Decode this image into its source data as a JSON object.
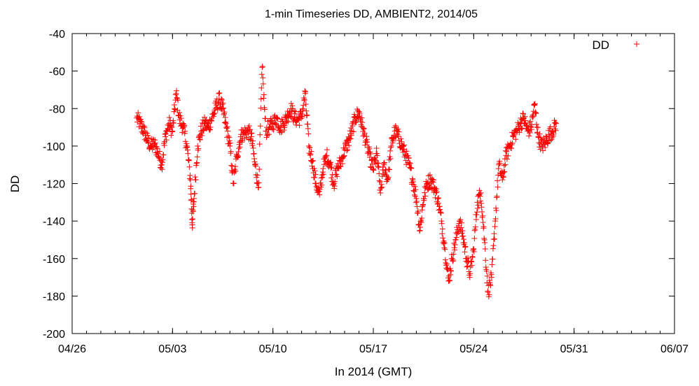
{
  "chart_data": {
    "type": "scatter",
    "title": "1-min Timeseries DD, AMBIENT2, 2014/05",
    "xlabel": "In 2014 (GMT)",
    "ylabel": "DD",
    "x_unit": "date (2014, GMT)",
    "xlim": [
      "2014-04-26",
      "2014-06-07"
    ],
    "ylim": [
      -200,
      -40
    ],
    "x_ticks": [
      "04/26",
      "05/03",
      "05/10",
      "05/17",
      "05/24",
      "05/31",
      "06/07"
    ],
    "y_ticks": [
      "-200",
      "-180",
      "-160",
      "-140",
      "-120",
      "-100",
      "-80",
      "-60",
      "-40"
    ],
    "grid": false,
    "legend_position": "top-right",
    "series": [
      {
        "name": "DD",
        "color": "#ff0000",
        "marker": "+",
        "points": [
          [
            "2014-04-30T12:00",
            -85
          ],
          [
            "2014-04-30T18:00",
            -88
          ],
          [
            "2014-05-01T00:00",
            -92
          ],
          [
            "2014-05-01T06:00",
            -97
          ],
          [
            "2014-05-01T12:00",
            -100
          ],
          [
            "2014-05-01T18:00",
            -99
          ],
          [
            "2014-05-02T00:00",
            -104
          ],
          [
            "2014-05-02T06:00",
            -110
          ],
          [
            "2014-05-02T12:00",
            -95
          ],
          [
            "2014-05-02T18:00",
            -88
          ],
          [
            "2014-05-03T00:00",
            -92
          ],
          [
            "2014-05-03T06:00",
            -72
          ],
          [
            "2014-05-03T12:00",
            -86
          ],
          [
            "2014-05-03T18:00",
            -90
          ],
          [
            "2014-05-04T00:00",
            -100
          ],
          [
            "2014-05-04T06:00",
            -118
          ],
          [
            "2014-05-04T09:00",
            -142
          ],
          [
            "2014-05-04T12:00",
            -128
          ],
          [
            "2014-05-04T18:00",
            -100
          ],
          [
            "2014-05-05T00:00",
            -92
          ],
          [
            "2014-05-05T06:00",
            -88
          ],
          [
            "2014-05-05T12:00",
            -90
          ],
          [
            "2014-05-05T18:00",
            -85
          ],
          [
            "2014-05-06T00:00",
            -80
          ],
          [
            "2014-05-06T06:00",
            -75
          ],
          [
            "2014-05-06T12:00",
            -80
          ],
          [
            "2014-05-06T18:00",
            -90
          ],
          [
            "2014-05-07T00:00",
            -100
          ],
          [
            "2014-05-07T06:00",
            -120
          ],
          [
            "2014-05-07T12:00",
            -105
          ],
          [
            "2014-05-07T18:00",
            -95
          ],
          [
            "2014-05-08T00:00",
            -93
          ],
          [
            "2014-05-08T06:00",
            -92
          ],
          [
            "2014-05-08T12:00",
            -95
          ],
          [
            "2014-05-08T18:00",
            -110
          ],
          [
            "2014-05-09T00:00",
            -122
          ],
          [
            "2014-05-09T06:00",
            -58
          ],
          [
            "2014-05-09T12:00",
            -92
          ],
          [
            "2014-05-09T18:00",
            -90
          ],
          [
            "2014-05-10T00:00",
            -88
          ],
          [
            "2014-05-10T06:00",
            -85
          ],
          [
            "2014-05-10T12:00",
            -90
          ],
          [
            "2014-05-10T18:00",
            -88
          ],
          [
            "2014-05-11T00:00",
            -84
          ],
          [
            "2014-05-11T06:00",
            -80
          ],
          [
            "2014-05-11T12:00",
            -85
          ],
          [
            "2014-05-11T18:00",
            -86
          ],
          [
            "2014-05-12T00:00",
            -84
          ],
          [
            "2014-05-12T06:00",
            -72
          ],
          [
            "2014-05-12T12:00",
            -100
          ],
          [
            "2014-05-12T18:00",
            -108
          ],
          [
            "2014-05-13T00:00",
            -120
          ],
          [
            "2014-05-13T06:00",
            -126
          ],
          [
            "2014-05-13T12:00",
            -112
          ],
          [
            "2014-05-13T18:00",
            -105
          ],
          [
            "2014-05-14T00:00",
            -110
          ],
          [
            "2014-05-14T06:00",
            -120
          ],
          [
            "2014-05-14T12:00",
            -112
          ],
          [
            "2014-05-14T18:00",
            -108
          ],
          [
            "2014-05-15T00:00",
            -102
          ],
          [
            "2014-05-15T06:00",
            -98
          ],
          [
            "2014-05-15T12:00",
            -92
          ],
          [
            "2014-05-15T18:00",
            -85
          ],
          [
            "2014-05-16T00:00",
            -82
          ],
          [
            "2014-05-16T06:00",
            -90
          ],
          [
            "2014-05-16T12:00",
            -98
          ],
          [
            "2014-05-16T18:00",
            -106
          ],
          [
            "2014-05-17T00:00",
            -112
          ],
          [
            "2014-05-17T06:00",
            -104
          ],
          [
            "2014-05-17T12:00",
            -125
          ],
          [
            "2014-05-17T18:00",
            -110
          ],
          [
            "2014-05-18T00:00",
            -118
          ],
          [
            "2014-05-18T06:00",
            -100
          ],
          [
            "2014-05-18T12:00",
            -92
          ],
          [
            "2014-05-18T18:00",
            -95
          ],
          [
            "2014-05-19T00:00",
            -100
          ],
          [
            "2014-05-19T06:00",
            -105
          ],
          [
            "2014-05-19T12:00",
            -110
          ],
          [
            "2014-05-19T18:00",
            -118
          ],
          [
            "2014-05-20T00:00",
            -128
          ],
          [
            "2014-05-20T06:00",
            -145
          ],
          [
            "2014-05-20T12:00",
            -128
          ],
          [
            "2014-05-20T18:00",
            -120
          ],
          [
            "2014-05-21T00:00",
            -118
          ],
          [
            "2014-05-21T06:00",
            -122
          ],
          [
            "2014-05-21T12:00",
            -128
          ],
          [
            "2014-05-21T18:00",
            -140
          ],
          [
            "2014-05-22T00:00",
            -155
          ],
          [
            "2014-05-22T06:00",
            -172
          ],
          [
            "2014-05-22T12:00",
            -160
          ],
          [
            "2014-05-22T18:00",
            -150
          ],
          [
            "2014-05-23T00:00",
            -140
          ],
          [
            "2014-05-23T06:00",
            -148
          ],
          [
            "2014-05-23T12:00",
            -160
          ],
          [
            "2014-05-23T18:00",
            -168
          ],
          [
            "2014-05-24T00:00",
            -155
          ],
          [
            "2014-05-24T06:00",
            -130
          ],
          [
            "2014-05-24T12:00",
            -125
          ],
          [
            "2014-05-24T18:00",
            -150
          ],
          [
            "2014-05-25T00:00",
            -178
          ],
          [
            "2014-05-25T06:00",
            -170
          ],
          [
            "2014-05-25T12:00",
            -140
          ],
          [
            "2014-05-25T18:00",
            -110
          ],
          [
            "2014-05-26T00:00",
            -118
          ],
          [
            "2014-05-26T06:00",
            -105
          ],
          [
            "2014-05-26T12:00",
            -100
          ],
          [
            "2014-05-26T18:00",
            -95
          ],
          [
            "2014-05-27T00:00",
            -92
          ],
          [
            "2014-05-27T06:00",
            -88
          ],
          [
            "2014-05-27T12:00",
            -85
          ],
          [
            "2014-05-27T18:00",
            -92
          ],
          [
            "2014-05-28T00:00",
            -90
          ],
          [
            "2014-05-28T06:00",
            -78
          ],
          [
            "2014-05-28T12:00",
            -95
          ],
          [
            "2014-05-28T18:00",
            -100
          ],
          [
            "2014-05-29T00:00",
            -98
          ],
          [
            "2014-05-29T06:00",
            -94
          ],
          [
            "2014-05-29T12:00",
            -92
          ],
          [
            "2014-05-29T18:00",
            -88
          ]
        ]
      }
    ]
  }
}
